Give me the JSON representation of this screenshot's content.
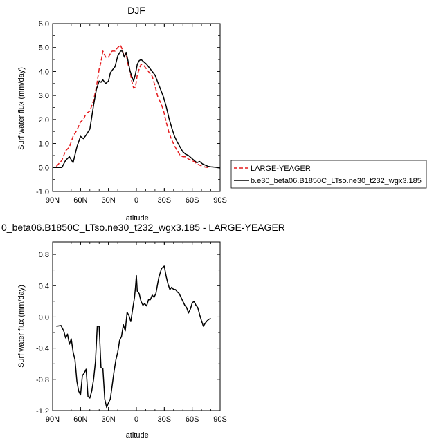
{
  "chart_data": [
    {
      "type": "line",
      "title": "DJF",
      "xlabel": "latitude",
      "ylabel": "Surf water flux (mm/day)",
      "xlim": [
        90,
        -90
      ],
      "ylim": [
        -1.0,
        6.0
      ],
      "xticks": [
        90,
        60,
        30,
        0,
        -30,
        -60,
        -90
      ],
      "xtick_labels": [
        "90N",
        "60N",
        "30N",
        "0",
        "30S",
        "60S",
        "90S"
      ],
      "yticks": [
        -1.0,
        0.0,
        1.0,
        2.0,
        3.0,
        4.0,
        5.0,
        6.0
      ],
      "ytick_labels": [
        "-1.0",
        "0.0",
        "1.0",
        "2.0",
        "3.0",
        "4.0",
        "5.0",
        "6.0"
      ],
      "grid": false,
      "legend_position": "right",
      "series": [
        {
          "name": "LARGE-YEAGER",
          "color": "#e41a1c",
          "dash": "dashed",
          "x": [
            86,
            80,
            76,
            72,
            68,
            64,
            60,
            57,
            54,
            50,
            46,
            43,
            40,
            38,
            36,
            33,
            30,
            28,
            26,
            23,
            20,
            17,
            15,
            13,
            11,
            9,
            7,
            5,
            3,
            1,
            -1,
            -3,
            -5,
            -8,
            -11,
            -14,
            -17,
            -20,
            -23,
            -26,
            -29,
            -32,
            -35,
            -38,
            -41,
            -44,
            -47,
            -50,
            -53,
            -56,
            -59,
            -62,
            -65,
            -68,
            -71,
            -74,
            -77
          ],
          "values": [
            0.05,
            0.3,
            0.7,
            0.85,
            1.3,
            1.55,
            1.9,
            2.0,
            2.25,
            2.35,
            2.8,
            3.35,
            4.1,
            4.4,
            4.85,
            4.6,
            4.6,
            4.75,
            4.85,
            4.85,
            5.0,
            5.1,
            4.9,
            4.6,
            4.75,
            4.3,
            4.05,
            3.6,
            3.3,
            3.35,
            3.85,
            4.1,
            4.3,
            4.25,
            4.1,
            3.95,
            3.8,
            3.4,
            2.95,
            2.7,
            2.4,
            1.9,
            1.45,
            1.15,
            0.9,
            0.7,
            0.5,
            0.45,
            0.45,
            0.35,
            0.3,
            0.25,
            0.15,
            0.1,
            0.05,
            0.02,
            0.0
          ]
        },
        {
          "name": "b.e30_beta06.B1850C_LTso.ne30_t232_wgx3.185",
          "color": "#000000",
          "dash": "solid",
          "x": [
            90,
            80,
            76,
            72,
            68,
            64,
            60,
            57,
            54,
            50,
            46,
            43,
            40,
            38,
            36,
            33,
            30,
            28,
            26,
            23,
            20,
            17,
            15,
            13,
            11,
            9,
            7,
            5,
            3,
            1,
            -1,
            -3,
            -5,
            -8,
            -11,
            -14,
            -17,
            -20,
            -23,
            -26,
            -29,
            -32,
            -35,
            -38,
            -41,
            -44,
            -47,
            -50,
            -53,
            -56,
            -59,
            -62,
            -65,
            -68,
            -71,
            -74,
            -77,
            -80,
            -85,
            -90
          ],
          "values": [
            0.0,
            0.0,
            0.3,
            0.45,
            0.2,
            0.85,
            1.3,
            1.2,
            1.35,
            1.6,
            2.6,
            3.25,
            3.6,
            3.55,
            3.65,
            3.5,
            3.6,
            3.95,
            4.05,
            4.2,
            4.65,
            4.85,
            4.85,
            4.6,
            4.8,
            4.45,
            4.05,
            3.8,
            3.6,
            3.9,
            4.3,
            4.45,
            4.5,
            4.4,
            4.3,
            4.15,
            4.0,
            3.85,
            3.55,
            3.25,
            2.95,
            2.55,
            2.05,
            1.65,
            1.3,
            1.05,
            0.85,
            0.65,
            0.55,
            0.5,
            0.4,
            0.3,
            0.2,
            0.25,
            0.15,
            0.1,
            0.05,
            0.03,
            0.01,
            -0.02
          ]
        }
      ]
    },
    {
      "type": "line",
      "title": "0_beta06.B1850C_LTso.ne30_t232_wgx3.185 - LARGE-YEAGER",
      "xlabel": "latitude",
      "ylabel": "Surf water flux (mm/day)",
      "xlim": [
        90,
        -90
      ],
      "ylim": [
        -1.2,
        0.96
      ],
      "xticks": [
        90,
        60,
        30,
        0,
        -30,
        -60,
        -90
      ],
      "xtick_labels": [
        "90N",
        "60N",
        "30N",
        "0",
        "30S",
        "60S",
        "90S"
      ],
      "yticks": [
        -1.2,
        -0.8,
        -0.4,
        0.0,
        0.4,
        0.8
      ],
      "ytick_labels": [
        "-1.2",
        "-0.8",
        "-0.4",
        "0.0",
        "0.4",
        "0.8"
      ],
      "grid": false,
      "series": [
        {
          "color": "#000000",
          "dash": "solid",
          "x": [
            86,
            81,
            78,
            76,
            74,
            72,
            70,
            68,
            66,
            64,
            62,
            60,
            58,
            56,
            54,
            52,
            50,
            48,
            46,
            44,
            42,
            40,
            38,
            36,
            34,
            32,
            30,
            28,
            26,
            24,
            22,
            20,
            18,
            16,
            14,
            12,
            10,
            8,
            6,
            4,
            2,
            1,
            0,
            -1,
            -3,
            -5,
            -7,
            -9,
            -11,
            -13,
            -15,
            -17,
            -19,
            -21,
            -24,
            -27,
            -30,
            -32,
            -34,
            -36,
            -38,
            -40,
            -42,
            -44,
            -46,
            -48,
            -50,
            -52,
            -54,
            -56,
            -58,
            -60,
            -62,
            -64,
            -66,
            -68,
            -70,
            -72,
            -74,
            -76,
            -78,
            -80
          ],
          "values": [
            -0.12,
            -0.11,
            -0.18,
            -0.27,
            -0.22,
            -0.35,
            -0.28,
            -0.45,
            -0.55,
            -0.82,
            -0.95,
            -1.0,
            -0.75,
            -0.72,
            -0.67,
            -1.02,
            -1.04,
            -0.95,
            -0.8,
            -0.58,
            -0.12,
            -0.12,
            -0.65,
            -0.66,
            -1.05,
            -1.16,
            -1.1,
            -1.05,
            -0.88,
            -0.7,
            -0.55,
            -0.45,
            -0.3,
            -0.25,
            -0.1,
            -0.18,
            0.06,
            0.02,
            -0.06,
            0.1,
            0.25,
            0.38,
            0.53,
            0.33,
            0.3,
            0.2,
            0.15,
            0.17,
            0.14,
            0.22,
            0.22,
            0.28,
            0.25,
            0.3,
            0.5,
            0.62,
            0.65,
            0.52,
            0.42,
            0.35,
            0.38,
            0.35,
            0.35,
            0.32,
            0.3,
            0.25,
            0.2,
            0.15,
            0.12,
            0.05,
            0.1,
            0.18,
            0.2,
            0.15,
            0.12,
            0.03,
            -0.05,
            -0.12,
            -0.08,
            -0.05,
            -0.03,
            -0.02
          ]
        }
      ]
    }
  ]
}
